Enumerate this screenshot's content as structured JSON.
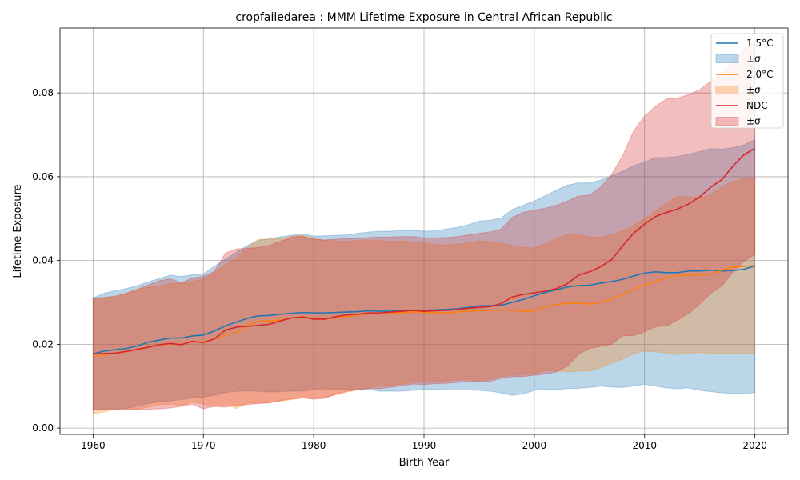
{
  "chart_data": {
    "type": "line",
    "title": "cropfailedarea : MMM Lifetime Exposure in Central African Republic",
    "xlabel": "Birth Year",
    "ylabel": "Lifetime Exposure",
    "xlim": [
      1957,
      2023
    ],
    "ylim": [
      -0.0015,
      0.0955
    ],
    "x_ticks": [
      1960,
      1970,
      1980,
      1990,
      2000,
      2010,
      2020
    ],
    "y_ticks": [
      0.0,
      0.02,
      0.04,
      0.06,
      0.08
    ],
    "y_tick_labels": [
      "0.00",
      "0.02",
      "0.04",
      "0.06",
      "0.08"
    ],
    "grid": true,
    "legend_position": "top-right",
    "x": [
      1960,
      1961,
      1962,
      1963,
      1964,
      1965,
      1966,
      1967,
      1968,
      1969,
      1970,
      1971,
      1972,
      1973,
      1974,
      1975,
      1976,
      1977,
      1978,
      1979,
      1980,
      1981,
      1982,
      1983,
      1984,
      1985,
      1986,
      1987,
      1988,
      1989,
      1990,
      1991,
      1992,
      1993,
      1994,
      1995,
      1996,
      1997,
      1998,
      1999,
      2000,
      2001,
      2002,
      2003,
      2004,
      2005,
      2006,
      2007,
      2008,
      2009,
      2010,
      2011,
      2012,
      2013,
      2014,
      2015,
      2016,
      2017,
      2018,
      2019,
      2020
    ],
    "series": [
      {
        "name": "1.5°C",
        "band_label": "±σ",
        "color": "#1f77b4",
        "values": [
          0.0177,
          0.0184,
          0.0187,
          0.019,
          0.0196,
          0.0205,
          0.021,
          0.0215,
          0.0215,
          0.022,
          0.0222,
          0.0232,
          0.0244,
          0.0253,
          0.0262,
          0.0268,
          0.0269,
          0.0272,
          0.0274,
          0.0276,
          0.0275,
          0.0275,
          0.0276,
          0.0277,
          0.0278,
          0.028,
          0.0279,
          0.0279,
          0.028,
          0.0281,
          0.0281,
          0.0282,
          0.0283,
          0.0285,
          0.0288,
          0.0292,
          0.0292,
          0.0293,
          0.03,
          0.0307,
          0.0316,
          0.0324,
          0.033,
          0.0337,
          0.034,
          0.0341,
          0.0346,
          0.035,
          0.0355,
          0.0363,
          0.037,
          0.0373,
          0.0371,
          0.0371,
          0.0375,
          0.0375,
          0.0377,
          0.0375,
          0.0376,
          0.0379,
          0.0387
        ],
        "upper": [
          0.0311,
          0.0322,
          0.0328,
          0.0333,
          0.034,
          0.0349,
          0.0357,
          0.0365,
          0.0362,
          0.0366,
          0.0368,
          0.0386,
          0.0403,
          0.042,
          0.0436,
          0.0448,
          0.0452,
          0.0457,
          0.046,
          0.0464,
          0.0458,
          0.0459,
          0.046,
          0.0461,
          0.0465,
          0.0468,
          0.047,
          0.047,
          0.0472,
          0.0472,
          0.047,
          0.0471,
          0.0475,
          0.0479,
          0.0485,
          0.0494,
          0.0496,
          0.0502,
          0.0522,
          0.0532,
          0.0542,
          0.0555,
          0.0568,
          0.058,
          0.0585,
          0.0585,
          0.0592,
          0.0602,
          0.0613,
          0.0626,
          0.0635,
          0.0646,
          0.0646,
          0.0648,
          0.0654,
          0.066,
          0.0667,
          0.0666,
          0.0669,
          0.0676,
          0.0689
        ],
        "lower": [
          0.0042,
          0.0046,
          0.0046,
          0.0047,
          0.0052,
          0.0059,
          0.0062,
          0.0065,
          0.0068,
          0.0072,
          0.0074,
          0.0078,
          0.0085,
          0.0088,
          0.0088,
          0.0088,
          0.0086,
          0.0087,
          0.0088,
          0.0088,
          0.0092,
          0.0091,
          0.0092,
          0.0093,
          0.0091,
          0.0092,
          0.0088,
          0.0088,
          0.0088,
          0.009,
          0.0092,
          0.0093,
          0.0091,
          0.0091,
          0.0091,
          0.009,
          0.0088,
          0.0084,
          0.0078,
          0.0082,
          0.009,
          0.0093,
          0.0092,
          0.0094,
          0.0095,
          0.0097,
          0.01,
          0.0098,
          0.0097,
          0.01,
          0.0105,
          0.01,
          0.0096,
          0.0094,
          0.0096,
          0.009,
          0.0087,
          0.0084,
          0.0083,
          0.0082,
          0.0085
        ]
      },
      {
        "name": "2.0°C",
        "band_label": "±σ",
        "color": "#ff7f0e",
        "values": [
          0.0171,
          0.0175,
          0.0179,
          0.0183,
          0.0188,
          0.0193,
          0.0198,
          0.0201,
          0.02,
          0.0206,
          0.0206,
          0.0212,
          0.0223,
          0.0227,
          0.0246,
          0.0255,
          0.0256,
          0.0258,
          0.0263,
          0.0266,
          0.0262,
          0.0261,
          0.0263,
          0.0266,
          0.027,
          0.0273,
          0.0274,
          0.0274,
          0.0276,
          0.0277,
          0.0277,
          0.0275,
          0.0275,
          0.0277,
          0.0279,
          0.028,
          0.0281,
          0.0282,
          0.0281,
          0.0279,
          0.028,
          0.0289,
          0.0295,
          0.0298,
          0.0299,
          0.0296,
          0.03,
          0.0308,
          0.0318,
          0.0331,
          0.0342,
          0.035,
          0.0359,
          0.0364,
          0.0365,
          0.0366,
          0.0367,
          0.0377,
          0.0384,
          0.0386,
          0.0388
        ],
        "upper": [
          0.0308,
          0.0311,
          0.0313,
          0.032,
          0.0331,
          0.0336,
          0.034,
          0.0345,
          0.0346,
          0.035,
          0.0355,
          0.0373,
          0.0389,
          0.0407,
          0.0432,
          0.0451,
          0.0451,
          0.0452,
          0.0458,
          0.046,
          0.0453,
          0.0448,
          0.0447,
          0.0446,
          0.0448,
          0.0449,
          0.0448,
          0.0446,
          0.0447,
          0.0445,
          0.0442,
          0.0438,
          0.0437,
          0.0439,
          0.0442,
          0.0447,
          0.0445,
          0.0441,
          0.0436,
          0.0431,
          0.043,
          0.0441,
          0.0453,
          0.0462,
          0.0462,
          0.0456,
          0.0456,
          0.0461,
          0.0471,
          0.0484,
          0.05,
          0.0518,
          0.0538,
          0.0553,
          0.0552,
          0.0551,
          0.0556,
          0.0576,
          0.0589,
          0.0595,
          0.0597
        ],
        "lower": [
          0.0034,
          0.0039,
          0.0045,
          0.0046,
          0.0045,
          0.005,
          0.0056,
          0.0057,
          0.0054,
          0.0062,
          0.0057,
          0.0051,
          0.0057,
          0.0047,
          0.006,
          0.0059,
          0.0061,
          0.0064,
          0.0068,
          0.0072,
          0.0071,
          0.0074,
          0.0079,
          0.0086,
          0.0092,
          0.0097,
          0.01,
          0.0102,
          0.0105,
          0.0109,
          0.0112,
          0.0112,
          0.0113,
          0.0115,
          0.0116,
          0.0113,
          0.0117,
          0.0123,
          0.0126,
          0.0127,
          0.013,
          0.0137,
          0.0137,
          0.0134,
          0.0136,
          0.0136,
          0.0144,
          0.0155,
          0.0165,
          0.0178,
          0.0184,
          0.0182,
          0.018,
          0.0175,
          0.0178,
          0.0181,
          0.0178,
          0.0178,
          0.0179,
          0.0177,
          0.0179
        ]
      },
      {
        "name": "NDC",
        "band_label": "±σ",
        "color": "#d62728",
        "values": [
          0.0177,
          0.0178,
          0.0179,
          0.0183,
          0.0188,
          0.0193,
          0.0199,
          0.0202,
          0.0199,
          0.0207,
          0.0204,
          0.0213,
          0.0234,
          0.0241,
          0.0243,
          0.0245,
          0.0248,
          0.0256,
          0.0263,
          0.0265,
          0.026,
          0.026,
          0.0266,
          0.027,
          0.0272,
          0.0275,
          0.0275,
          0.0277,
          0.0279,
          0.0281,
          0.0279,
          0.028,
          0.0281,
          0.0283,
          0.0286,
          0.0288,
          0.029,
          0.0297,
          0.0313,
          0.0319,
          0.0323,
          0.0327,
          0.0333,
          0.0345,
          0.0365,
          0.0373,
          0.0385,
          0.0402,
          0.0435,
          0.0465,
          0.0487,
          0.0505,
          0.0515,
          0.0523,
          0.0535,
          0.0552,
          0.0575,
          0.0593,
          0.0625,
          0.0652,
          0.0668
        ],
        "upper": [
          0.031,
          0.0312,
          0.0315,
          0.0322,
          0.0331,
          0.0342,
          0.0352,
          0.0356,
          0.0347,
          0.0358,
          0.0362,
          0.0374,
          0.0418,
          0.0428,
          0.0429,
          0.0431,
          0.0436,
          0.0446,
          0.0456,
          0.0458,
          0.0451,
          0.0449,
          0.0451,
          0.0452,
          0.0453,
          0.0455,
          0.0456,
          0.0456,
          0.0457,
          0.0457,
          0.0454,
          0.0454,
          0.0455,
          0.0457,
          0.0461,
          0.0465,
          0.0468,
          0.0475,
          0.0503,
          0.0515,
          0.052,
          0.0525,
          0.0532,
          0.0542,
          0.0554,
          0.0556,
          0.0575,
          0.0605,
          0.065,
          0.0709,
          0.0745,
          0.0768,
          0.0786,
          0.0788,
          0.0796,
          0.0808,
          0.0828,
          0.0847,
          0.0874,
          0.0906,
          0.0921
        ],
        "lower": [
          0.0045,
          0.0044,
          0.0044,
          0.0044,
          0.0045,
          0.0045,
          0.0046,
          0.0048,
          0.0052,
          0.0057,
          0.0046,
          0.0052,
          0.005,
          0.0055,
          0.0056,
          0.0059,
          0.006,
          0.0066,
          0.007,
          0.0072,
          0.0069,
          0.0071,
          0.0081,
          0.0088,
          0.0091,
          0.0095,
          0.0094,
          0.0098,
          0.0101,
          0.0105,
          0.0104,
          0.0106,
          0.0107,
          0.0109,
          0.0111,
          0.0111,
          0.0112,
          0.0119,
          0.0123,
          0.0123,
          0.0126,
          0.0129,
          0.0134,
          0.0148,
          0.0176,
          0.019,
          0.0195,
          0.02,
          0.022,
          0.0221,
          0.023,
          0.0242,
          0.0244,
          0.0258,
          0.0274,
          0.0296,
          0.0322,
          0.0339,
          0.0373,
          0.0398,
          0.0415
        ]
      }
    ]
  }
}
